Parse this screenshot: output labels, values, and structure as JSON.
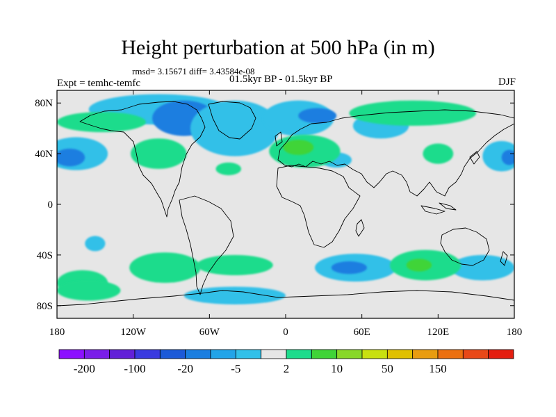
{
  "title": "Height perturbation at 500 hPa (in m)",
  "stats_text": "rmsd= 3.15671 diff= 3.43584e-08",
  "experiment_text": "Expt = temhc-temfc",
  "period_text": "01.5kyr BP - 01.5kyr BP",
  "season_text": "DJF",
  "map": {
    "projection": "cylindrical-equidistant",
    "lon_range": [
      -180,
      180
    ],
    "lat_range": [
      -90,
      90
    ],
    "x_ticks": [
      {
        "lon": -180,
        "label": "180"
      },
      {
        "lon": -120,
        "label": "120W"
      },
      {
        "lon": -60,
        "label": "60W"
      },
      {
        "lon": 0,
        "label": "0"
      },
      {
        "lon": 60,
        "label": "60E"
      },
      {
        "lon": 120,
        "label": "120E"
      },
      {
        "lon": 180,
        "label": "180"
      }
    ],
    "y_ticks": [
      {
        "lat": 80,
        "label": "80N"
      },
      {
        "lat": 40,
        "label": "40N"
      },
      {
        "lat": 0,
        "label": "0"
      },
      {
        "lat": -40,
        "label": "40S"
      },
      {
        "lat": -80,
        "label": "80S"
      }
    ],
    "background_color": "#e6e6e6",
    "coastline_color": "#000000",
    "anomaly_regions": [
      {
        "lon": -100,
        "lat": 75,
        "rlon": 55,
        "rlat": 12,
        "level": "-5"
      },
      {
        "lon": -80,
        "lat": 68,
        "rlon": 25,
        "rlat": 14,
        "level": "-20"
      },
      {
        "lon": -40,
        "lat": 60,
        "rlon": 35,
        "rlat": 22,
        "level": "-5"
      },
      {
        "lon": 10,
        "lat": 68,
        "rlon": 28,
        "rlat": 14,
        "level": "-5"
      },
      {
        "lon": 25,
        "lat": 70,
        "rlon": 15,
        "rlat": 6,
        "level": "-20"
      },
      {
        "lon": -165,
        "lat": 40,
        "rlon": 25,
        "rlat": 13,
        "level": "-5"
      },
      {
        "lon": -170,
        "lat": 37,
        "rlon": 12,
        "rlat": 7,
        "level": "-20"
      },
      {
        "lon": 170,
        "lat": 38,
        "rlon": 15,
        "rlat": 12,
        "level": "-5"
      },
      {
        "lon": 176,
        "lat": 37,
        "rlon": 6,
        "rlat": 6,
        "level": "-20"
      },
      {
        "lon": 40,
        "lat": 35,
        "rlon": 12,
        "rlat": 6,
        "level": "-5"
      },
      {
        "lon": 75,
        "lat": 62,
        "rlon": 22,
        "rlat": 10,
        "level": "-5"
      },
      {
        "lon": -150,
        "lat": -31,
        "rlon": 8,
        "rlat": 6,
        "level": "-5"
      },
      {
        "lon": 55,
        "lat": -50,
        "rlon": 32,
        "rlat": 11,
        "level": "-5"
      },
      {
        "lon": 50,
        "lat": -50,
        "rlon": 14,
        "rlat": 5,
        "level": "-20"
      },
      {
        "lon": 155,
        "lat": -50,
        "rlon": 25,
        "rlat": 10,
        "level": "-5"
      },
      {
        "lon": -40,
        "lat": -72,
        "rlon": 40,
        "rlat": 7,
        "level": "-5"
      },
      {
        "lon": -160,
        "lat": -62,
        "rlon": 20,
        "rlat": 10,
        "level": "2"
      },
      {
        "lon": -100,
        "lat": 40,
        "rlon": 22,
        "rlat": 12,
        "level": "2"
      },
      {
        "lon": -145,
        "lat": 65,
        "rlon": 35,
        "rlat": 8,
        "level": "2"
      },
      {
        "lon": 15,
        "lat": 42,
        "rlon": 28,
        "rlat": 13,
        "level": "2"
      },
      {
        "lon": 10,
        "lat": 45,
        "rlon": 12,
        "rlat": 6,
        "level": "10"
      },
      {
        "lon": 100,
        "lat": 72,
        "rlon": 50,
        "rlat": 10,
        "level": "2"
      },
      {
        "lon": 120,
        "lat": 40,
        "rlon": 12,
        "rlat": 8,
        "level": "2"
      },
      {
        "lon": -45,
        "lat": 28,
        "rlon": 10,
        "rlat": 5,
        "level": "2"
      },
      {
        "lon": -95,
        "lat": -50,
        "rlon": 28,
        "rlat": 12,
        "level": "2"
      },
      {
        "lon": -40,
        "lat": -48,
        "rlon": 30,
        "rlat": 8,
        "level": "2"
      },
      {
        "lon": 110,
        "lat": -48,
        "rlon": 28,
        "rlat": 12,
        "level": "2"
      },
      {
        "lon": 105,
        "lat": -48,
        "rlon": 10,
        "rlat": 5,
        "level": "10"
      },
      {
        "lon": -155,
        "lat": -68,
        "rlon": 25,
        "rlat": 8,
        "level": "2"
      }
    ]
  },
  "colorbar": {
    "colors": [
      "#8c10ff",
      "#7a1ee8",
      "#6220d8",
      "#3a3ae0",
      "#1c5ad8",
      "#1a7ee0",
      "#22a4e8",
      "#32c0e8",
      "#e6e6e6",
      "#1edc8c",
      "#40d438",
      "#88d828",
      "#c8e010",
      "#e0c000",
      "#e89c10",
      "#ec7010",
      "#e84818",
      "#e41e10"
    ],
    "labels": [
      {
        "index": 1,
        "text": "-200"
      },
      {
        "index": 3,
        "text": "-100"
      },
      {
        "index": 5,
        "text": "-20"
      },
      {
        "index": 7,
        "text": "-5"
      },
      {
        "index": 9,
        "text": "2"
      },
      {
        "index": 11,
        "text": "10"
      },
      {
        "index": 13,
        "text": "50"
      },
      {
        "index": 15,
        "text": "150"
      }
    ],
    "level_colors": {
      "-20": "#1a7ee0",
      "-5": "#32c0e8",
      "2": "#1edc8c",
      "10": "#40d438"
    }
  }
}
